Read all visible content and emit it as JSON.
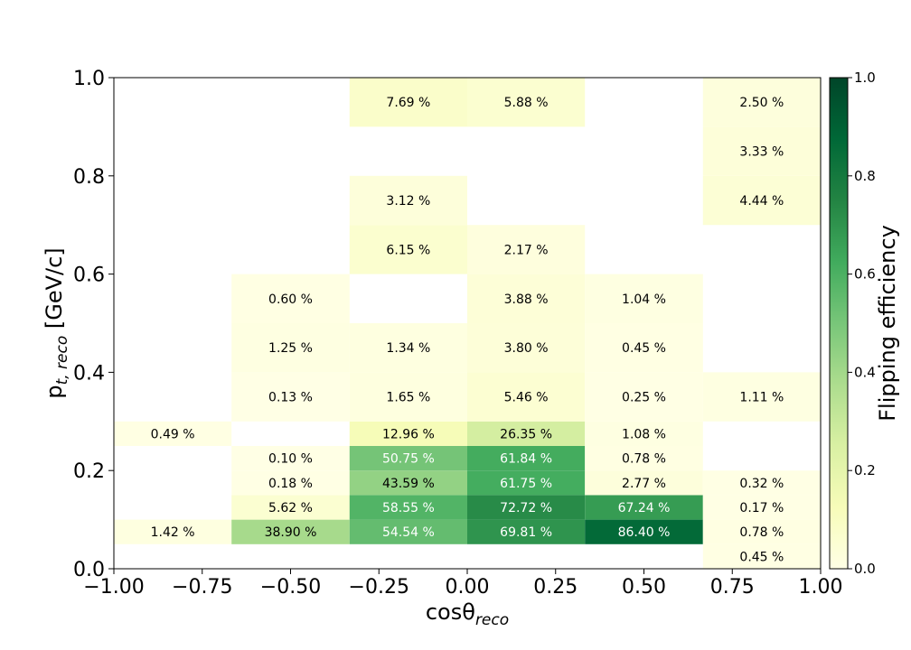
{
  "chart_data": {
    "type": "heatmap",
    "xlabel": "cosθ",
    "xlabel_sub": "reco",
    "ylabel_main": "p",
    "ylabel_sub": "t, reco",
    "ylabel_unit": " [GeV/c]",
    "xlim": [
      -1.0,
      1.0
    ],
    "ylim": [
      0.0,
      1.0
    ],
    "x_ticks": [
      -1.0,
      -0.75,
      -0.5,
      -0.25,
      0.0,
      0.25,
      0.5,
      0.75,
      1.0
    ],
    "x_tick_labels": [
      "−1.00",
      "−0.75",
      "−0.50",
      "−0.25",
      "0.00",
      "0.25",
      "0.50",
      "0.75",
      "1.00"
    ],
    "y_ticks": [
      0.0,
      0.2,
      0.4,
      0.6,
      0.8,
      1.0
    ],
    "y_tick_labels": [
      "0.0",
      "0.2",
      "0.4",
      "0.6",
      "0.8",
      "1.0"
    ],
    "x_edges": [
      -1.0,
      -0.667,
      -0.333,
      0.0,
      0.333,
      0.667,
      1.0
    ],
    "y_edges": [
      0.0,
      0.05,
      0.1,
      0.15,
      0.2,
      0.25,
      0.3,
      0.4,
      0.5,
      0.6,
      0.7,
      0.8,
      0.9,
      1.0
    ],
    "colorbar": {
      "label": "Flipping efficiency",
      "range": [
        0.0,
        1.0
      ],
      "ticks": [
        0.0,
        0.2,
        0.4,
        0.6,
        0.8,
        1.0
      ],
      "tick_labels": [
        "0.0",
        "0.2",
        "0.4",
        "0.6",
        "0.8",
        "1.0"
      ],
      "colormap": "YlGn"
    },
    "cells": [
      {
        "x": [
          0.667,
          1.0
        ],
        "y": [
          0.0,
          0.05
        ],
        "value": 0.0045,
        "label": "0.45 %"
      },
      {
        "x": [
          -1.0,
          -0.667
        ],
        "y": [
          0.05,
          0.1
        ],
        "value": 0.0142,
        "label": "1.42 %"
      },
      {
        "x": [
          -0.667,
          -0.333
        ],
        "y": [
          0.05,
          0.1
        ],
        "value": 0.389,
        "label": "38.90 %"
      },
      {
        "x": [
          -0.333,
          0.0
        ],
        "y": [
          0.05,
          0.1
        ],
        "value": 0.5454,
        "label": "54.54 %"
      },
      {
        "x": [
          0.0,
          0.333
        ],
        "y": [
          0.05,
          0.1
        ],
        "value": 0.6981,
        "label": "69.81 %"
      },
      {
        "x": [
          0.333,
          0.667
        ],
        "y": [
          0.05,
          0.1
        ],
        "value": 0.864,
        "label": "86.40 %"
      },
      {
        "x": [
          0.667,
          1.0
        ],
        "y": [
          0.05,
          0.1
        ],
        "value": 0.0078,
        "label": "0.78 %"
      },
      {
        "x": [
          -0.667,
          -0.333
        ],
        "y": [
          0.1,
          0.15
        ],
        "value": 0.0562,
        "label": "5.62 %"
      },
      {
        "x": [
          -0.333,
          0.0
        ],
        "y": [
          0.1,
          0.15
        ],
        "value": 0.5855,
        "label": "58.55 %"
      },
      {
        "x": [
          0.0,
          0.333
        ],
        "y": [
          0.1,
          0.15
        ],
        "value": 0.7272,
        "label": "72.72 %"
      },
      {
        "x": [
          0.333,
          0.667
        ],
        "y": [
          0.1,
          0.15
        ],
        "value": 0.6724,
        "label": "67.24 %"
      },
      {
        "x": [
          0.667,
          1.0
        ],
        "y": [
          0.1,
          0.15
        ],
        "value": 0.0017,
        "label": "0.17 %"
      },
      {
        "x": [
          -0.667,
          -0.333
        ],
        "y": [
          0.15,
          0.2
        ],
        "value": 0.0018,
        "label": "0.18 %"
      },
      {
        "x": [
          -0.333,
          0.0
        ],
        "y": [
          0.15,
          0.2
        ],
        "value": 0.4359,
        "label": "43.59 %"
      },
      {
        "x": [
          0.0,
          0.333
        ],
        "y": [
          0.15,
          0.2
        ],
        "value": 0.6175,
        "label": "61.75 %"
      },
      {
        "x": [
          0.333,
          0.667
        ],
        "y": [
          0.15,
          0.2
        ],
        "value": 0.0277,
        "label": "2.77 %"
      },
      {
        "x": [
          0.667,
          1.0
        ],
        "y": [
          0.15,
          0.2
        ],
        "value": 0.0032,
        "label": "0.32 %"
      },
      {
        "x": [
          -0.667,
          -0.333
        ],
        "y": [
          0.2,
          0.25
        ],
        "value": 0.001,
        "label": "0.10 %"
      },
      {
        "x": [
          -0.333,
          0.0
        ],
        "y": [
          0.2,
          0.25
        ],
        "value": 0.5075,
        "label": "50.75 %"
      },
      {
        "x": [
          0.0,
          0.333
        ],
        "y": [
          0.2,
          0.25
        ],
        "value": 0.6184,
        "label": "61.84 %"
      },
      {
        "x": [
          0.333,
          0.667
        ],
        "y": [
          0.2,
          0.25
        ],
        "value": 0.0078,
        "label": "0.78 %"
      },
      {
        "x": [
          -1.0,
          -0.667
        ],
        "y": [
          0.25,
          0.3
        ],
        "value": 0.0049,
        "label": "0.49 %"
      },
      {
        "x": [
          -0.333,
          0.0
        ],
        "y": [
          0.25,
          0.3
        ],
        "value": 0.1296,
        "label": "12.96 %"
      },
      {
        "x": [
          0.0,
          0.333
        ],
        "y": [
          0.25,
          0.3
        ],
        "value": 0.2635,
        "label": "26.35 %"
      },
      {
        "x": [
          0.333,
          0.667
        ],
        "y": [
          0.25,
          0.3
        ],
        "value": 0.0108,
        "label": "1.08 %"
      },
      {
        "x": [
          -0.667,
          -0.333
        ],
        "y": [
          0.3,
          0.4
        ],
        "value": 0.0013,
        "label": "0.13 %"
      },
      {
        "x": [
          -0.333,
          0.0
        ],
        "y": [
          0.3,
          0.4
        ],
        "value": 0.0165,
        "label": "1.65 %"
      },
      {
        "x": [
          0.0,
          0.333
        ],
        "y": [
          0.3,
          0.4
        ],
        "value": 0.0546,
        "label": "5.46 %"
      },
      {
        "x": [
          0.333,
          0.667
        ],
        "y": [
          0.3,
          0.4
        ],
        "value": 0.0025,
        "label": "0.25 %"
      },
      {
        "x": [
          0.667,
          1.0
        ],
        "y": [
          0.3,
          0.4
        ],
        "value": 0.0111,
        "label": "1.11 %"
      },
      {
        "x": [
          -0.667,
          -0.333
        ],
        "y": [
          0.4,
          0.5
        ],
        "value": 0.0125,
        "label": "1.25 %"
      },
      {
        "x": [
          -0.333,
          0.0
        ],
        "y": [
          0.4,
          0.5
        ],
        "value": 0.0134,
        "label": "1.34 %"
      },
      {
        "x": [
          0.0,
          0.333
        ],
        "y": [
          0.4,
          0.5
        ],
        "value": 0.038,
        "label": "3.80 %"
      },
      {
        "x": [
          0.333,
          0.667
        ],
        "y": [
          0.4,
          0.5
        ],
        "value": 0.0045,
        "label": "0.45 %"
      },
      {
        "x": [
          -0.667,
          -0.333
        ],
        "y": [
          0.5,
          0.6
        ],
        "value": 0.006,
        "label": "0.60 %"
      },
      {
        "x": [
          0.0,
          0.333
        ],
        "y": [
          0.5,
          0.6
        ],
        "value": 0.0388,
        "label": "3.88 %"
      },
      {
        "x": [
          0.333,
          0.667
        ],
        "y": [
          0.5,
          0.6
        ],
        "value": 0.0104,
        "label": "1.04 %"
      },
      {
        "x": [
          -0.333,
          0.0
        ],
        "y": [
          0.6,
          0.7
        ],
        "value": 0.0615,
        "label": "6.15 %"
      },
      {
        "x": [
          0.0,
          0.333
        ],
        "y": [
          0.6,
          0.7
        ],
        "value": 0.0217,
        "label": "2.17 %"
      },
      {
        "x": [
          -0.333,
          0.0
        ],
        "y": [
          0.7,
          0.8
        ],
        "value": 0.0312,
        "label": "3.12 %"
      },
      {
        "x": [
          0.667,
          1.0
        ],
        "y": [
          0.7,
          0.8
        ],
        "value": 0.0444,
        "label": "4.44 %"
      },
      {
        "x": [
          0.667,
          1.0
        ],
        "y": [
          0.8,
          0.9
        ],
        "value": 0.0333,
        "label": "3.33 %"
      },
      {
        "x": [
          -0.333,
          0.0
        ],
        "y": [
          0.9,
          1.0
        ],
        "value": 0.0769,
        "label": "7.69 %"
      },
      {
        "x": [
          0.0,
          0.333
        ],
        "y": [
          0.9,
          1.0
        ],
        "value": 0.0588,
        "label": "5.88 %"
      },
      {
        "x": [
          0.667,
          1.0
        ],
        "y": [
          0.9,
          1.0
        ],
        "value": 0.025,
        "label": "2.50 %"
      }
    ]
  }
}
